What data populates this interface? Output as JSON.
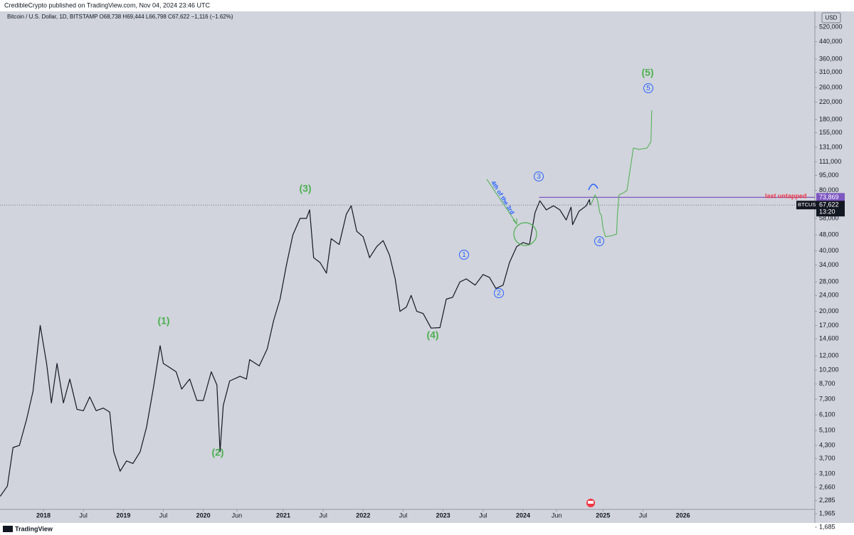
{
  "header": "CredibleCrypto published on TradingView.com, Nov 04, 2024 23:46 UTC",
  "symbol_line": "Bitcoin / U.S. Dollar, 1D, BITSTAMP  O68,738 H69,444 L66,798 C67,622 −1,116 (−1.62%)",
  "footer": "TradingView",
  "chart_data": {
    "type": "line",
    "log_scale": true,
    "currency": "USD",
    "xlim": [
      2017.457,
      2027.65
    ],
    "ylim": [
      1685,
      600000
    ],
    "xticks": [
      {
        "value": 2018,
        "label": "2018"
      },
      {
        "value": 2018.5,
        "label": "Jul"
      },
      {
        "value": 2019,
        "label": "2019"
      },
      {
        "value": 2019.5,
        "label": "Jul"
      },
      {
        "value": 2020,
        "label": "2020"
      },
      {
        "value": 2020.42,
        "label": "Jun"
      },
      {
        "value": 2021,
        "label": "2021"
      },
      {
        "value": 2021.5,
        "label": "Jul"
      },
      {
        "value": 2022,
        "label": "2022"
      },
      {
        "value": 2022.5,
        "label": "Jul"
      },
      {
        "value": 2023,
        "label": "2023"
      },
      {
        "value": 2023.5,
        "label": "Jul"
      },
      {
        "value": 2024,
        "label": "2024"
      },
      {
        "value": 2024.42,
        "label": "Jun"
      },
      {
        "value": 2025,
        "label": "2025"
      },
      {
        "value": 2025.5,
        "label": "Jul"
      },
      {
        "value": 2026,
        "label": "2026"
      }
    ],
    "yticks": [
      {
        "value": 520000,
        "label": "520,000"
      },
      {
        "value": 440000,
        "label": "440,000"
      },
      {
        "value": 360000,
        "label": "360,000"
      },
      {
        "value": 310000,
        "label": "310,000"
      },
      {
        "value": 260000,
        "label": "260,000"
      },
      {
        "value": 220000,
        "label": "220,000"
      },
      {
        "value": 180000,
        "label": "180,000"
      },
      {
        "value": 155000,
        "label": "155,000"
      },
      {
        "value": 131000,
        "label": "131,000"
      },
      {
        "value": 111000,
        "label": "111,000"
      },
      {
        "value": 95000,
        "label": "95,000"
      },
      {
        "value": 80000,
        "label": "80,000"
      },
      {
        "value": 58000,
        "label": "58,000"
      },
      {
        "value": 48000,
        "label": "48,000"
      },
      {
        "value": 40000,
        "label": "40,000"
      },
      {
        "value": 34000,
        "label": "34,000"
      },
      {
        "value": 28000,
        "label": "28,000"
      },
      {
        "value": 24000,
        "label": "24,000"
      },
      {
        "value": 20000,
        "label": "20,000"
      },
      {
        "value": 17000,
        "label": "17,000"
      },
      {
        "value": 14600,
        "label": "14,600"
      },
      {
        "value": 12000,
        "label": "12,000"
      },
      {
        "value": 10200,
        "label": "10,200"
      },
      {
        "value": 8700,
        "label": "8,700"
      },
      {
        "value": 7300,
        "label": "7,300"
      },
      {
        "value": 6100,
        "label": "6,100"
      },
      {
        "value": 5100,
        "label": "5,100"
      },
      {
        "value": 4300,
        "label": "4,300"
      },
      {
        "value": 3700,
        "label": "3,700"
      },
      {
        "value": 3100,
        "label": "3,100"
      },
      {
        "value": 2660,
        "label": "2,660"
      },
      {
        "value": 2285,
        "label": "2,285"
      },
      {
        "value": 1965,
        "label": "1,965"
      },
      {
        "value": 1685,
        "label": "1,685"
      }
    ],
    "series": [
      {
        "name": "BTCUSD",
        "color": "#131722",
        "x": [
          2017.46,
          2017.55,
          2017.62,
          2017.7,
          2017.79,
          2017.87,
          2017.96,
          2018.04,
          2018.1,
          2018.17,
          2018.25,
          2018.33,
          2018.42,
          2018.5,
          2018.58,
          2018.66,
          2018.75,
          2018.83,
          2018.88,
          2018.96,
          2019.04,
          2019.12,
          2019.21,
          2019.29,
          2019.38,
          2019.46,
          2019.5,
          2019.58,
          2019.66,
          2019.73,
          2019.83,
          2019.92,
          2020.0,
          2020.1,
          2020.17,
          2020.21,
          2020.25,
          2020.33,
          2020.46,
          2020.54,
          2020.58,
          2020.7,
          2020.8,
          2020.88,
          2020.96,
          2021.04,
          2021.12,
          2021.21,
          2021.29,
          2021.33,
          2021.38,
          2021.46,
          2021.54,
          2021.6,
          2021.7,
          2021.79,
          2021.85,
          2021.92,
          2022.0,
          2022.08,
          2022.17,
          2022.25,
          2022.33,
          2022.4,
          2022.46,
          2022.54,
          2022.6,
          2022.67,
          2022.75,
          2022.85,
          2022.96,
          2023.04,
          2023.12,
          2023.21,
          2023.29,
          2023.4,
          2023.5,
          2023.58,
          2023.66,
          2023.75,
          2023.83,
          2023.92,
          2024.0,
          2024.08,
          2024.15,
          2024.21,
          2024.29,
          2024.38,
          2024.46,
          2024.54,
          2024.6,
          2024.62,
          2024.7,
          2024.79,
          2024.83,
          2024.84
        ],
        "values": [
          2400,
          2700,
          4200,
          4300,
          5800,
          8000,
          17000,
          11000,
          7000,
          11000,
          7000,
          9200,
          6500,
          6400,
          7500,
          6400,
          6600,
          6300,
          4000,
          3200,
          3600,
          3500,
          4000,
          5300,
          8500,
          13500,
          11000,
          10500,
          10000,
          8200,
          9200,
          7200,
          7200,
          10000,
          8600,
          4000,
          6800,
          9000,
          9500,
          9200,
          11500,
          10700,
          13000,
          18000,
          23000,
          34000,
          48000,
          58000,
          58000,
          64000,
          37000,
          35000,
          31000,
          46000,
          43000,
          61000,
          67000,
          50000,
          47000,
          37000,
          42000,
          45000,
          38000,
          29000,
          20000,
          21000,
          24000,
          20000,
          19500,
          16500,
          16600,
          23000,
          23500,
          28000,
          29000,
          27000,
          30500,
          29500,
          26000,
          27000,
          35000,
          42000,
          44000,
          43000,
          62000,
          71000,
          64000,
          67000,
          64000,
          57000,
          66000,
          54000,
          63000,
          67000,
          72000,
          67622
        ]
      },
      {
        "color": "#4caf50",
        "x": [
          2024.85,
          2024.9,
          2024.93,
          2024.96,
          2024.98,
          2025.0,
          2025.03,
          2025.1,
          2025.17,
          2025.18,
          2025.2,
          2025.26,
          2025.3,
          2025.38,
          2025.45,
          2025.55,
          2025.6,
          2025.61
        ],
        "values": [
          68000,
          76000,
          72000,
          62000,
          60000,
          52000,
          47000,
          47500,
          48500,
          60000,
          76000,
          78000,
          80000,
          130000,
          128000,
          130000,
          140000,
          200000
        ]
      }
    ],
    "level": {
      "value": 73869,
      "label": "73,869",
      "color": "#7e57c2"
    },
    "last_price": {
      "value": 67622,
      "label": "67,622",
      "symbol": "BTCUSD",
      "countdown": "13:20"
    },
    "annotations": [
      "(1)",
      "(2)",
      "(3)",
      "(4)",
      "(5)",
      "1",
      "2",
      "3",
      "4",
      "5",
      "4th of the 3rd",
      "last untapped"
    ]
  }
}
